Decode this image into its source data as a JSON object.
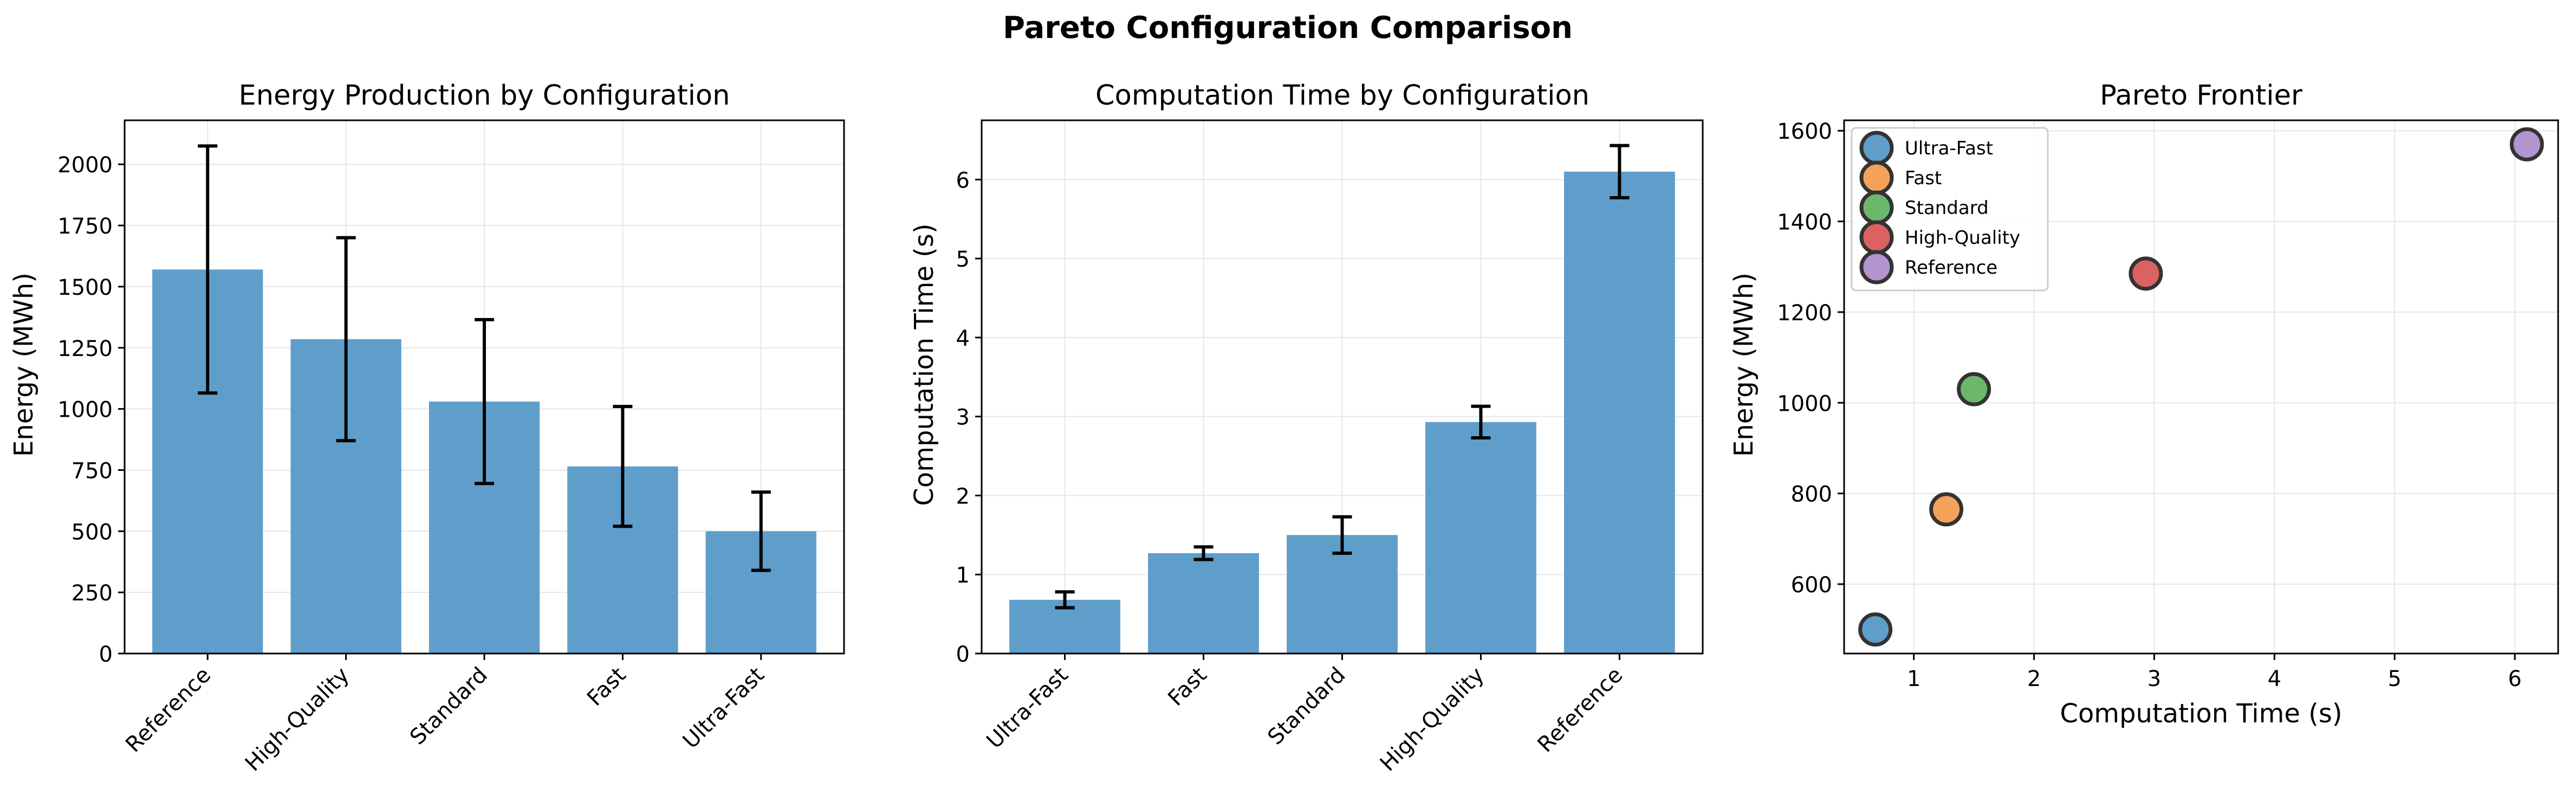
{
  "figure": {
    "title": "Pareto Configuration Comparison"
  },
  "colors": {
    "bar": "#5f9ecb",
    "errorbar": "#000000",
    "grid": "#e6e6e6",
    "marker_edge": "#333333",
    "scatter": [
      "#5f9ecb",
      "#f5a15a",
      "#6bb86b",
      "#dc6262",
      "#b295cf"
    ]
  },
  "chart_data": [
    {
      "type": "bar",
      "title": "Energy Production by Configuration",
      "xlabel": "",
      "ylabel": "Energy (MWh)",
      "categories": [
        "Reference",
        "High-Quality",
        "Standard",
        "Fast",
        "Ultra-Fast"
      ],
      "values": [
        1570,
        1285,
        1030,
        765,
        500
      ],
      "errors": [
        505,
        415,
        335,
        245,
        160
      ],
      "ylim": [
        0,
        2180
      ],
      "yticks": [
        0,
        250,
        500,
        750,
        1000,
        1250,
        1500,
        1750,
        2000
      ],
      "ytick_labels": [
        "0",
        "250",
        "500",
        "750",
        "1000",
        "1250",
        "1500",
        "1750",
        "2000"
      ],
      "grid": true
    },
    {
      "type": "bar",
      "title": "Computation Time by Configuration",
      "xlabel": "",
      "ylabel": "Computation Time (s)",
      "categories": [
        "Ultra-Fast",
        "Fast",
        "Standard",
        "High-Quality",
        "Reference"
      ],
      "values": [
        0.68,
        1.27,
        1.5,
        2.93,
        6.1
      ],
      "errors": [
        0.1,
        0.08,
        0.23,
        0.2,
        0.33
      ],
      "ylim": [
        0,
        6.75
      ],
      "yticks": [
        0,
        1,
        2,
        3,
        4,
        5,
        6
      ],
      "ytick_labels": [
        "0",
        "1",
        "2",
        "3",
        "4",
        "5",
        "6"
      ],
      "grid": true
    },
    {
      "type": "scatter",
      "title": "Pareto Frontier",
      "xlabel": "Computation Time (s)",
      "ylabel": "Energy (MWh)",
      "series": [
        {
          "name": "Ultra-Fast",
          "x": 0.68,
          "y": 500
        },
        {
          "name": "Fast",
          "x": 1.27,
          "y": 765
        },
        {
          "name": "Standard",
          "x": 1.5,
          "y": 1030
        },
        {
          "name": "High-Quality",
          "x": 2.93,
          "y": 1285
        },
        {
          "name": "Reference",
          "x": 6.1,
          "y": 1570
        }
      ],
      "xlim": [
        0.42,
        6.36
      ],
      "ylim": [
        447,
        1623
      ],
      "xticks": [
        1,
        2,
        3,
        4,
        5,
        6
      ],
      "xtick_labels": [
        "1",
        "2",
        "3",
        "4",
        "5",
        "6"
      ],
      "yticks": [
        600,
        800,
        1000,
        1200,
        1400,
        1600
      ],
      "ytick_labels": [
        "600",
        "800",
        "1000",
        "1200",
        "1400",
        "1600"
      ],
      "legend": "top-left",
      "grid": true
    }
  ]
}
